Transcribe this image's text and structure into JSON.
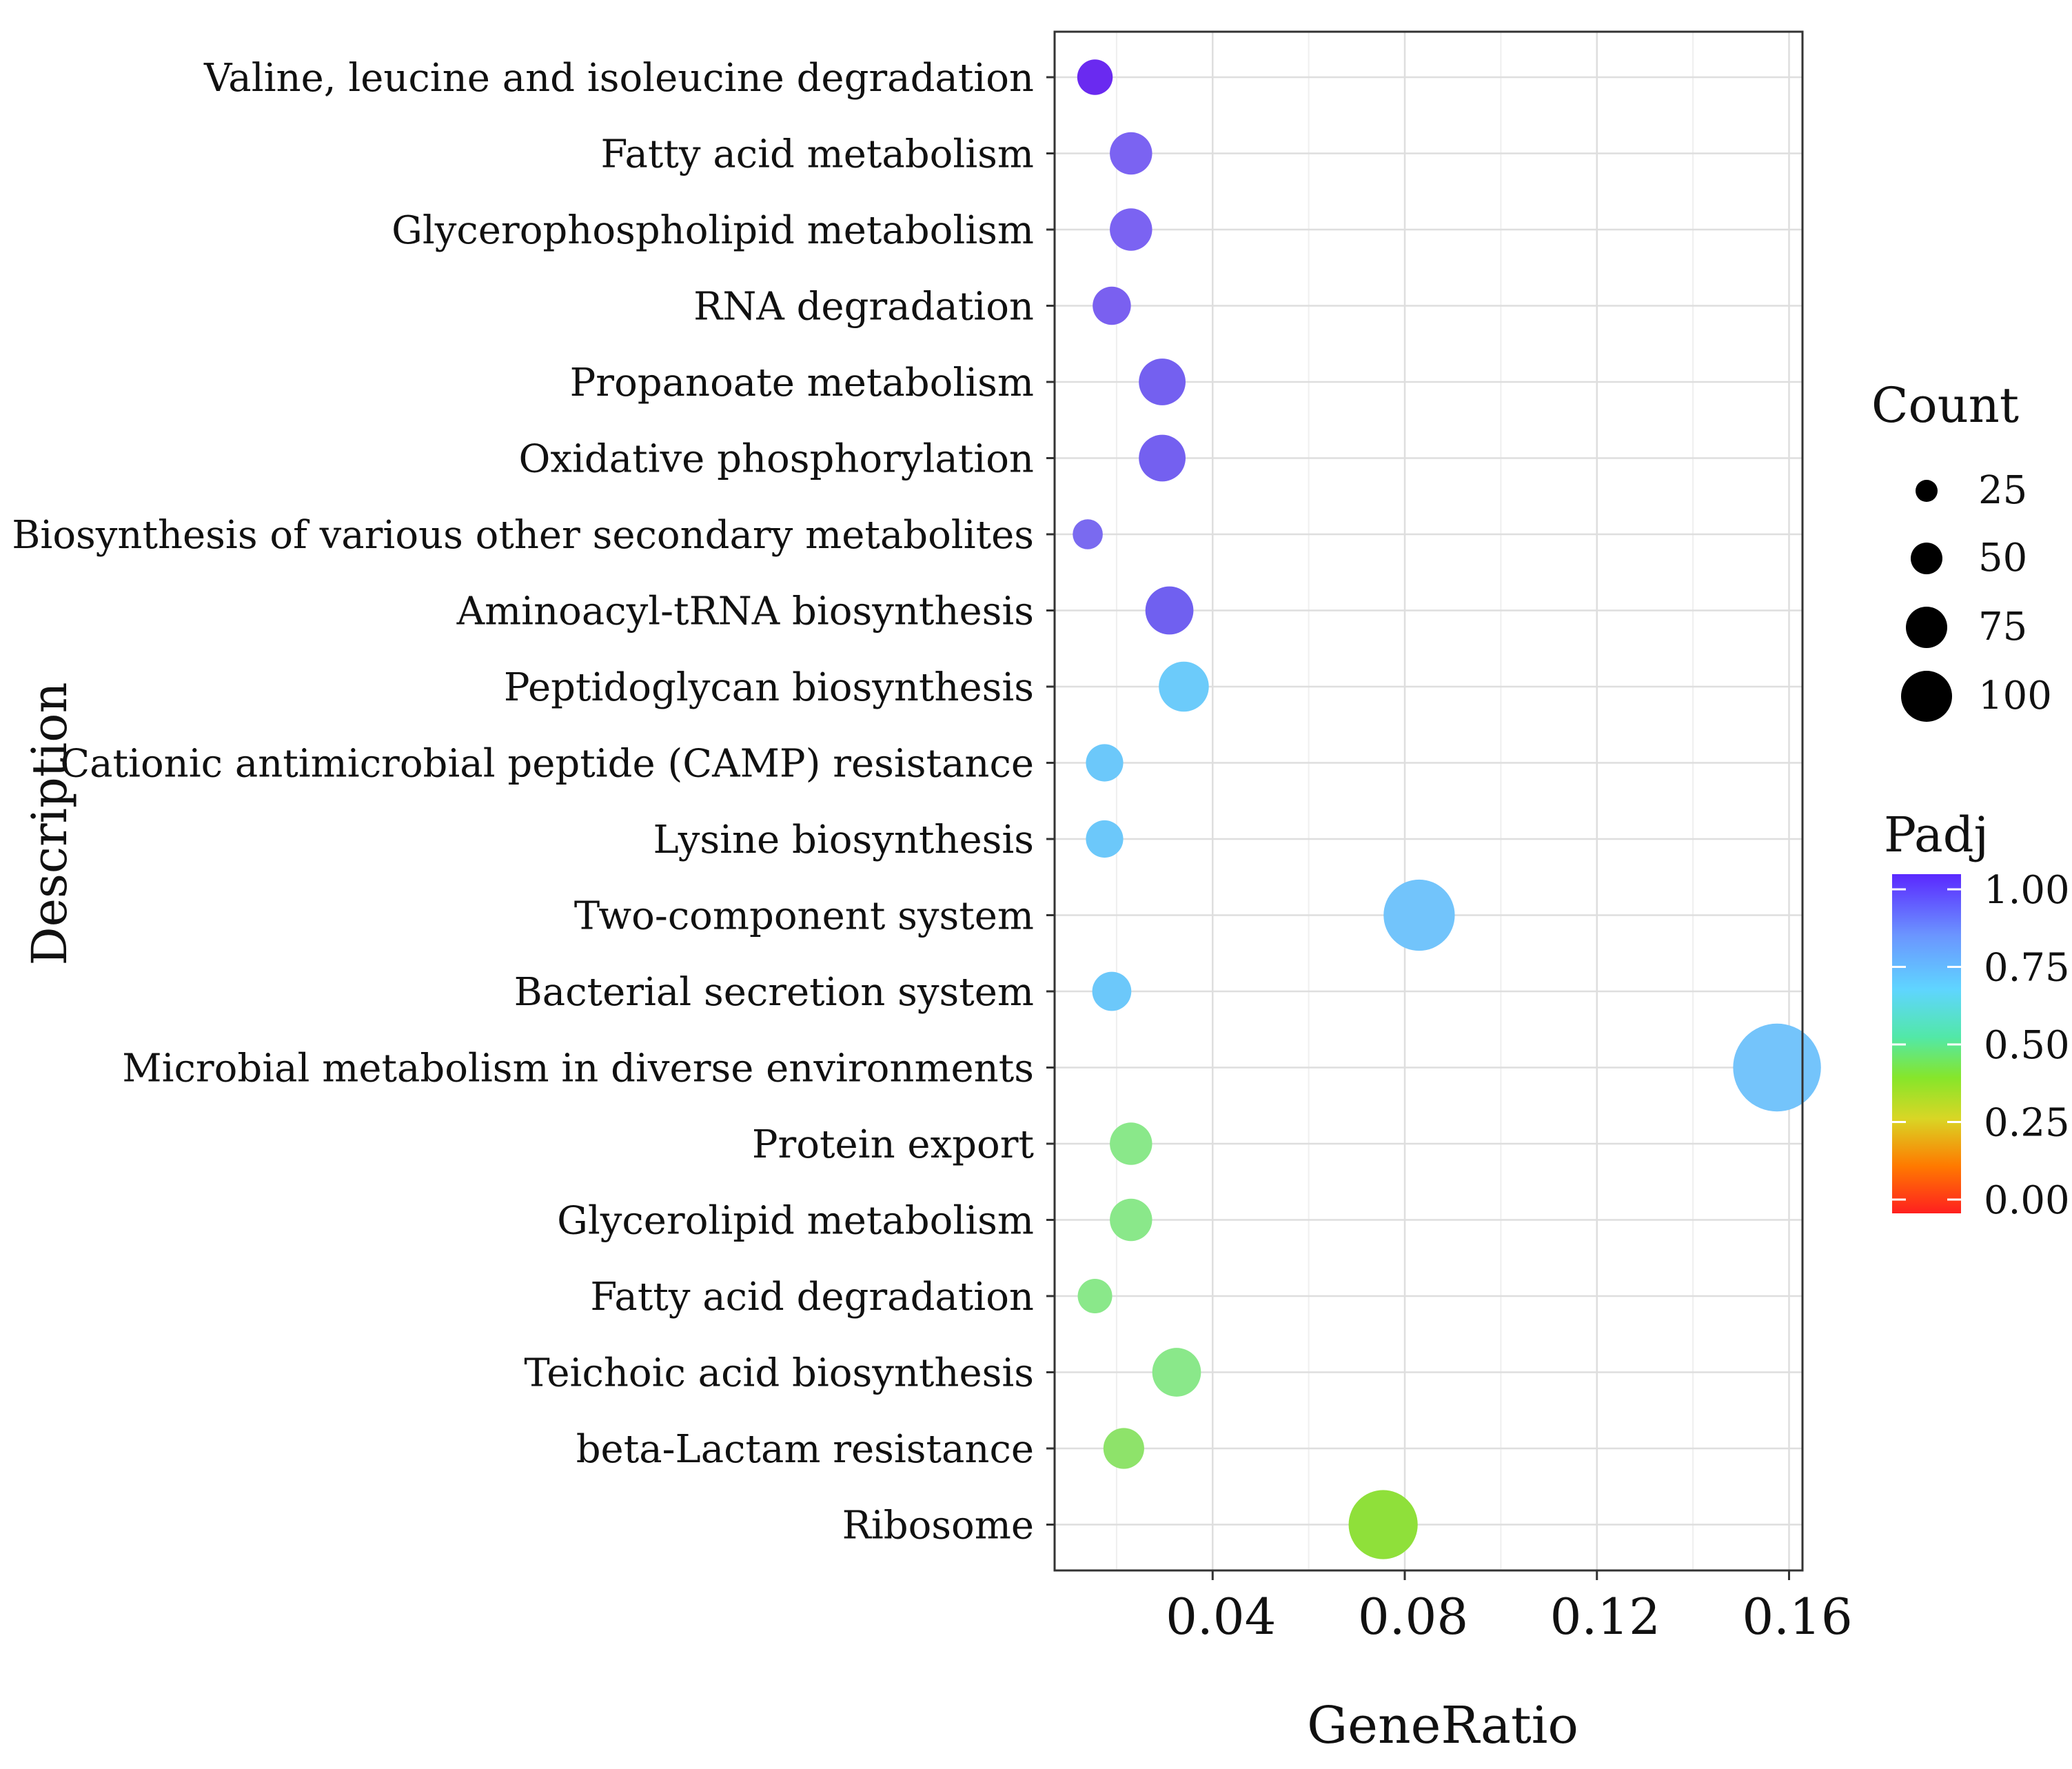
{
  "chart_data": {
    "type": "scatter",
    "subtype": "bubble",
    "xlabel": "GeneRatio",
    "ylabel": "Description",
    "xlim": [
      0.0071,
      0.1628
    ],
    "xticks": [
      0.04,
      0.08,
      0.12,
      0.16
    ],
    "xtick_labels": [
      "0.04",
      "0.08",
      "0.12",
      "0.16"
    ],
    "xminor": [
      0.02,
      0.06,
      0.1,
      0.14
    ],
    "grid": true,
    "legend_position": "right",
    "size_legend": {
      "title": "Count",
      "values": [
        25,
        50,
        75,
        100
      ],
      "labels": [
        "25",
        "50",
        "75",
        "100"
      ]
    },
    "color_legend": {
      "title": "Padj",
      "ticks": [
        1.0,
        0.75,
        0.5,
        0.25,
        0.0
      ],
      "tick_labels": [
        "1.00",
        "0.75",
        "0.50",
        "0.25",
        "0.00"
      ],
      "colormap": [
        "#ff2a1a",
        "#ff7a00",
        "#e8d22a",
        "#8be32a",
        "#4fe3b0",
        "#5fd3ff",
        "#5f9bff",
        "#6030ff"
      ]
    },
    "points": [
      {
        "term": "Valine, leucine and isoleucine degradation",
        "x": 0.0155,
        "count": 14,
        "padj": 0.97,
        "color": "#6a2af0"
      },
      {
        "term": "Fatty acid metabolism",
        "x": 0.023,
        "count": 22,
        "padj": 0.88,
        "color": "#7b63f2"
      },
      {
        "term": "Glycerophospholipid metabolism",
        "x": 0.023,
        "count": 22,
        "padj": 0.88,
        "color": "#7b63f2"
      },
      {
        "term": "RNA degradation",
        "x": 0.019,
        "count": 17,
        "padj": 0.89,
        "color": "#7a60f0"
      },
      {
        "term": "Propanoate metabolism",
        "x": 0.0295,
        "count": 28,
        "padj": 0.88,
        "color": "#7460f0"
      },
      {
        "term": "Oxidative phosphorylation",
        "x": 0.0295,
        "count": 28,
        "padj": 0.88,
        "color": "#7460f0"
      },
      {
        "term": "Biosynthesis of various other secondary metabolites",
        "x": 0.014,
        "count": 9,
        "padj": 0.89,
        "color": "#7a6af0"
      },
      {
        "term": "Aminoacyl-tRNA biosynthesis",
        "x": 0.031,
        "count": 30,
        "padj": 0.88,
        "color": "#7060f0"
      },
      {
        "term": "Peptidoglycan biosynthesis",
        "x": 0.034,
        "count": 33,
        "padj": 0.66,
        "color": "#6ccbfa"
      },
      {
        "term": "Cationic antimicrobial peptide (CAMP) resistance",
        "x": 0.0175,
        "count": 16,
        "padj": 0.65,
        "color": "#6cc8fa"
      },
      {
        "term": "Lysine biosynthesis",
        "x": 0.0175,
        "count": 16,
        "padj": 0.65,
        "color": "#6cc8fa"
      },
      {
        "term": "Two-component system",
        "x": 0.083,
        "count": 75,
        "padj": 0.66,
        "color": "#72c4fb"
      },
      {
        "term": "Bacterial secretion system",
        "x": 0.019,
        "count": 18,
        "padj": 0.65,
        "color": "#6cc8fa"
      },
      {
        "term": "Microbial metabolism in diverse environments",
        "x": 0.1575,
        "count": 120,
        "padj": 0.66,
        "color": "#74c4fb"
      },
      {
        "term": "Protein export",
        "x": 0.023,
        "count": 22,
        "padj": 0.4,
        "color": "#8ae88a"
      },
      {
        "term": "Glycerolipid metabolism",
        "x": 0.023,
        "count": 22,
        "padj": 0.4,
        "color": "#8ae88a"
      },
      {
        "term": "Fatty acid degradation",
        "x": 0.0155,
        "count": 13,
        "padj": 0.4,
        "color": "#8ae88a"
      },
      {
        "term": "Teichoic acid biosynthesis",
        "x": 0.0325,
        "count": 31,
        "padj": 0.4,
        "color": "#8ae88a"
      },
      {
        "term": "beta-Lactam resistance",
        "x": 0.0215,
        "count": 20,
        "padj": 0.33,
        "color": "#8ee36a"
      },
      {
        "term": "Ribosome",
        "x": 0.0755,
        "count": 70,
        "padj": 0.28,
        "color": "#8fe03a"
      }
    ]
  }
}
